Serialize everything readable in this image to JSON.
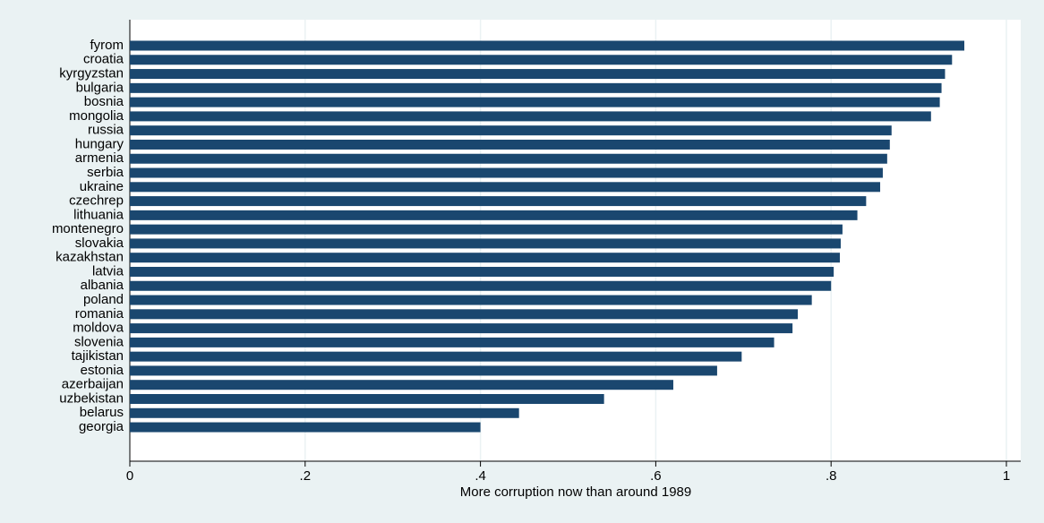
{
  "chart_data": {
    "type": "hbar",
    "x_label": "More corruption now than around 1989",
    "categories": [
      "fyrom",
      "croatia",
      "kyrgyzstan",
      "bulgaria",
      "bosnia",
      "mongolia",
      "russia",
      "hungary",
      "armenia",
      "serbia",
      "ukraine",
      "czechrep",
      "lithuania",
      "montenegro",
      "slovakia",
      "kazakhstan",
      "latvia",
      "albania",
      "poland",
      "romania",
      "moldova",
      "slovenia",
      "tajikistan",
      "estonia",
      "azerbaijan",
      "uzbekistan",
      "belarus",
      "georgia"
    ],
    "values": [
      0.952,
      0.938,
      0.93,
      0.926,
      0.924,
      0.914,
      0.869,
      0.867,
      0.864,
      0.859,
      0.856,
      0.84,
      0.83,
      0.813,
      0.811,
      0.81,
      0.803,
      0.8,
      0.778,
      0.762,
      0.756,
      0.735,
      0.698,
      0.67,
      0.62,
      0.541,
      0.444,
      0.4
    ],
    "color": "#1a476f",
    "xlim": [
      0,
      1
    ],
    "xticks": [
      0,
      {
        "value": 0.2,
        "label": ".2"
      },
      {
        "value": 0.4,
        "label": ".4"
      },
      {
        "value": 0.6,
        "label": ".6"
      },
      {
        "value": 0.8,
        "label": ".8"
      },
      1
    ],
    "grid": true
  }
}
